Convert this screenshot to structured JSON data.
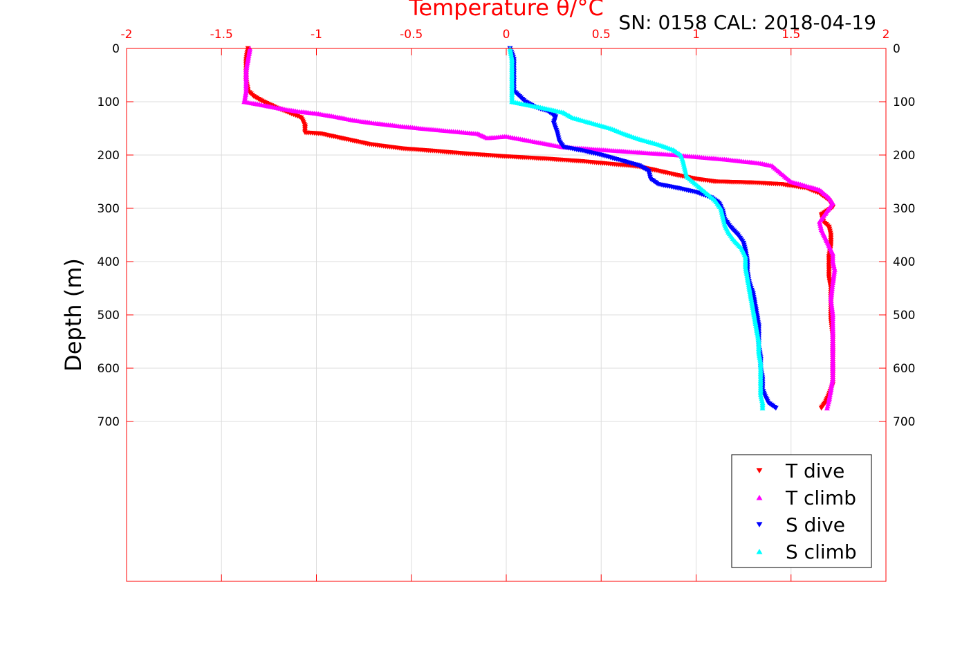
{
  "chart_data": {
    "type": "scatter",
    "title": "SN: 0158  CAL: 2018-04-19",
    "xlabel": "Temperature θ/°C",
    "ylabel": "Depth (m)",
    "xlim": [
      -2,
      2
    ],
    "ylim": [
      0,
      1000
    ],
    "y_reversed": true,
    "xticks": [
      "-2",
      "-1.5",
      "-1",
      "-0.5",
      "0",
      "0.5",
      "1",
      "1.5",
      "2"
    ],
    "yticks": [
      "0",
      "100",
      "200",
      "300",
      "400",
      "500",
      "600",
      "700"
    ],
    "grid": true,
    "legend_position": "bottom-right",
    "colors": {
      "axis": "#ff0000",
      "grid": "#dddddd"
    },
    "series": [
      {
        "name": "T dive",
        "color": "#ff0000",
        "marker": "triangle-down",
        "points": [
          [
            -1.36,
            0
          ],
          [
            -1.37,
            20
          ],
          [
            -1.37,
            40
          ],
          [
            -1.37,
            60
          ],
          [
            -1.36,
            80
          ],
          [
            -1.33,
            90
          ],
          [
            -1.28,
            100
          ],
          [
            -1.22,
            110
          ],
          [
            -1.15,
            120
          ],
          [
            -1.08,
            130
          ],
          [
            -1.06,
            145
          ],
          [
            -1.06,
            158
          ],
          [
            -0.98,
            160
          ],
          [
            -0.85,
            170
          ],
          [
            -0.72,
            180
          ],
          [
            -0.55,
            188
          ],
          [
            -0.4,
            192
          ],
          [
            -0.2,
            198
          ],
          [
            0,
            203
          ],
          [
            0.2,
            207
          ],
          [
            0.4,
            212
          ],
          [
            0.55,
            217
          ],
          [
            0.7,
            222
          ],
          [
            0.8,
            230
          ],
          [
            0.9,
            238
          ],
          [
            1.0,
            245
          ],
          [
            1.1,
            250
          ],
          [
            1.3,
            252
          ],
          [
            1.45,
            255
          ],
          [
            1.58,
            262
          ],
          [
            1.65,
            272
          ],
          [
            1.7,
            285
          ],
          [
            1.72,
            298
          ],
          [
            1.69,
            305
          ],
          [
            1.66,
            312
          ],
          [
            1.67,
            325
          ],
          [
            1.7,
            335
          ],
          [
            1.71,
            350
          ],
          [
            1.71,
            370
          ],
          [
            1.7,
            390
          ],
          [
            1.7,
            410
          ],
          [
            1.7,
            430
          ],
          [
            1.71,
            450
          ],
          [
            1.71,
            480
          ],
          [
            1.71,
            510
          ],
          [
            1.72,
            540
          ],
          [
            1.72,
            570
          ],
          [
            1.72,
            600
          ],
          [
            1.72,
            630
          ],
          [
            1.7,
            650
          ],
          [
            1.68,
            665
          ],
          [
            1.66,
            675
          ]
        ]
      },
      {
        "name": "T climb",
        "color": "#ff00ff",
        "marker": "triangle-up",
        "points": [
          [
            -1.35,
            0
          ],
          [
            -1.36,
            20
          ],
          [
            -1.37,
            40
          ],
          [
            -1.37,
            60
          ],
          [
            -1.37,
            80
          ],
          [
            -1.38,
            100
          ],
          [
            -1.3,
            105
          ],
          [
            -1.2,
            112
          ],
          [
            -1.1,
            118
          ],
          [
            -1.0,
            122
          ],
          [
            -0.9,
            128
          ],
          [
            -0.8,
            135
          ],
          [
            -0.7,
            140
          ],
          [
            -0.58,
            145
          ],
          [
            -0.45,
            150
          ],
          [
            -0.3,
            155
          ],
          [
            -0.15,
            160
          ],
          [
            -0.1,
            168
          ],
          [
            0.0,
            165
          ],
          [
            0.15,
            175
          ],
          [
            0.3,
            185
          ],
          [
            0.5,
            190
          ],
          [
            0.7,
            195
          ],
          [
            0.9,
            200
          ],
          [
            1.05,
            205
          ],
          [
            1.15,
            208
          ],
          [
            1.25,
            212
          ],
          [
            1.33,
            215
          ],
          [
            1.4,
            220
          ],
          [
            1.45,
            235
          ],
          [
            1.5,
            250
          ],
          [
            1.58,
            258
          ],
          [
            1.65,
            265
          ],
          [
            1.7,
            280
          ],
          [
            1.72,
            290
          ],
          [
            1.7,
            300
          ],
          [
            1.68,
            310
          ],
          [
            1.65,
            325
          ],
          [
            1.66,
            340
          ],
          [
            1.68,
            355
          ],
          [
            1.7,
            370
          ],
          [
            1.72,
            385
          ],
          [
            1.72,
            400
          ],
          [
            1.73,
            415
          ],
          [
            1.72,
            440
          ],
          [
            1.71,
            470
          ],
          [
            1.72,
            500
          ],
          [
            1.72,
            530
          ],
          [
            1.72,
            560
          ],
          [
            1.72,
            590
          ],
          [
            1.72,
            620
          ],
          [
            1.71,
            640
          ],
          [
            1.7,
            660
          ],
          [
            1.69,
            675
          ]
        ]
      },
      {
        "name": "S dive",
        "color": "#0000ff",
        "marker": "triangle-down",
        "points": [
          [
            0.02,
            0
          ],
          [
            0.04,
            20
          ],
          [
            0.04,
            40
          ],
          [
            0.04,
            60
          ],
          [
            0.04,
            80
          ],
          [
            0.07,
            90
          ],
          [
            0.1,
            100
          ],
          [
            0.15,
            110
          ],
          [
            0.22,
            118
          ],
          [
            0.26,
            128
          ],
          [
            0.25,
            140
          ],
          [
            0.26,
            150
          ],
          [
            0.27,
            160
          ],
          [
            0.28,
            175
          ],
          [
            0.3,
            185
          ],
          [
            0.4,
            192
          ],
          [
            0.5,
            200
          ],
          [
            0.6,
            210
          ],
          [
            0.7,
            220
          ],
          [
            0.75,
            230
          ],
          [
            0.76,
            245
          ],
          [
            0.8,
            255
          ],
          [
            0.9,
            262
          ],
          [
            1.0,
            270
          ],
          [
            1.08,
            280
          ],
          [
            1.12,
            290
          ],
          [
            1.14,
            305
          ],
          [
            1.15,
            320
          ],
          [
            1.18,
            335
          ],
          [
            1.22,
            350
          ],
          [
            1.25,
            365
          ],
          [
            1.26,
            380
          ],
          [
            1.27,
            400
          ],
          [
            1.27,
            420
          ],
          [
            1.28,
            440
          ],
          [
            1.3,
            460
          ],
          [
            1.31,
            480
          ],
          [
            1.32,
            500
          ],
          [
            1.33,
            520
          ],
          [
            1.33,
            540
          ],
          [
            1.33,
            560
          ],
          [
            1.34,
            580
          ],
          [
            1.34,
            600
          ],
          [
            1.35,
            620
          ],
          [
            1.35,
            640
          ],
          [
            1.36,
            650
          ],
          [
            1.38,
            665
          ],
          [
            1.42,
            675
          ]
        ]
      },
      {
        "name": "S climb",
        "color": "#00ffff",
        "marker": "triangle-up",
        "points": [
          [
            0.02,
            0
          ],
          [
            0.03,
            20
          ],
          [
            0.03,
            40
          ],
          [
            0.03,
            60
          ],
          [
            0.03,
            80
          ],
          [
            0.03,
            100
          ],
          [
            0.1,
            105
          ],
          [
            0.2,
            112
          ],
          [
            0.3,
            120
          ],
          [
            0.35,
            130
          ],
          [
            0.45,
            140
          ],
          [
            0.55,
            150
          ],
          [
            0.62,
            160
          ],
          [
            0.7,
            170
          ],
          [
            0.8,
            180
          ],
          [
            0.88,
            190
          ],
          [
            0.92,
            200
          ],
          [
            0.93,
            210
          ],
          [
            0.94,
            225
          ],
          [
            0.95,
            240
          ],
          [
            1.0,
            255
          ],
          [
            1.05,
            270
          ],
          [
            1.1,
            285
          ],
          [
            1.13,
            300
          ],
          [
            1.14,
            315
          ],
          [
            1.15,
            330
          ],
          [
            1.17,
            345
          ],
          [
            1.2,
            360
          ],
          [
            1.24,
            375
          ],
          [
            1.26,
            390
          ],
          [
            1.26,
            410
          ],
          [
            1.27,
            430
          ],
          [
            1.28,
            450
          ],
          [
            1.29,
            470
          ],
          [
            1.3,
            490
          ],
          [
            1.31,
            510
          ],
          [
            1.32,
            530
          ],
          [
            1.33,
            550
          ],
          [
            1.33,
            570
          ],
          [
            1.34,
            590
          ],
          [
            1.34,
            610
          ],
          [
            1.34,
            630
          ],
          [
            1.34,
            650
          ],
          [
            1.35,
            665
          ],
          [
            1.35,
            675
          ]
        ]
      }
    ]
  }
}
